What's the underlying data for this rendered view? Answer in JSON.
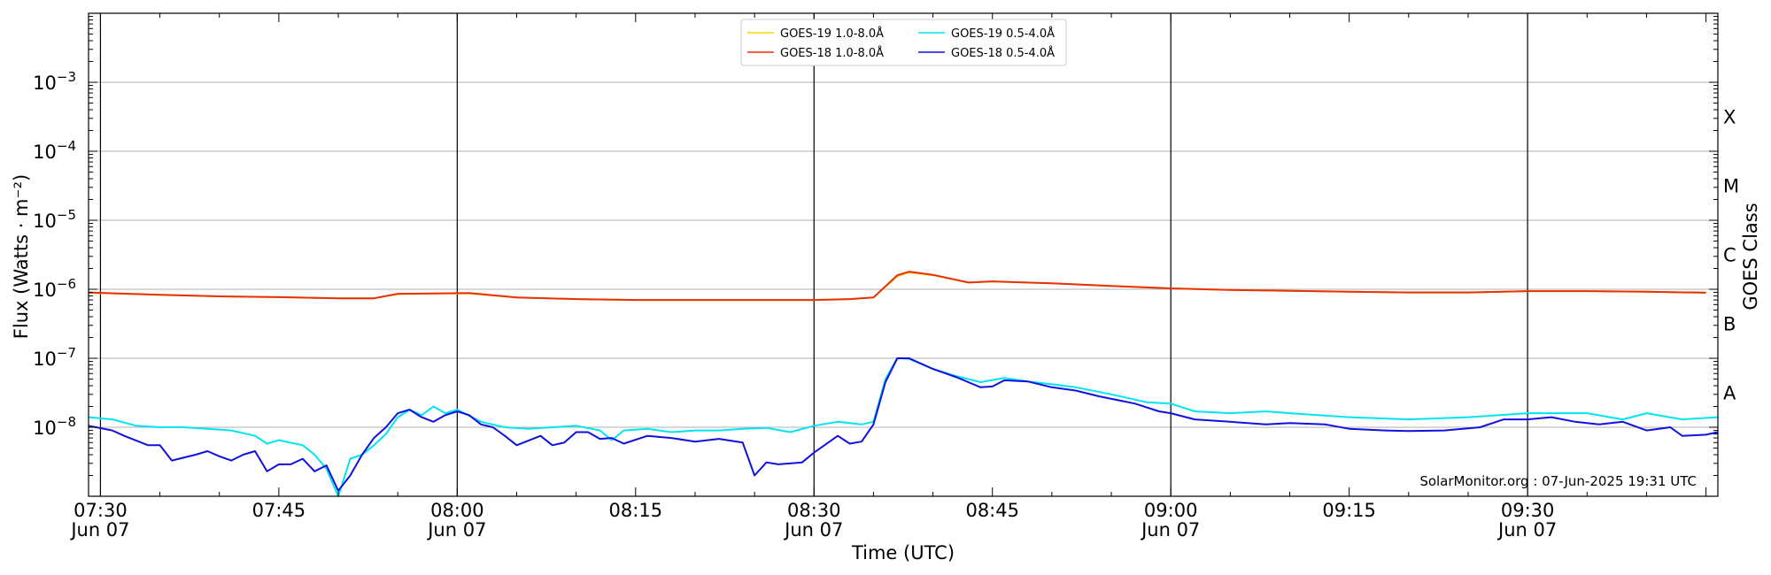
{
  "chart_data": {
    "type": "line",
    "title": "",
    "xlabel": "Time (UTC)",
    "ylabel": "Flux (Watts · m⁻²)",
    "y2label": "GOES Class",
    "credit": "SolarMonitor.org : 07-Jun-2025 19:31 UTC",
    "x_range": [
      "07:29",
      "09:46"
    ],
    "ylim": [
      1e-09,
      0.01
    ],
    "yscale": "log",
    "grid": "horizontal",
    "legend_position": "top-center",
    "x_ticks": [
      {
        "time": "07:30",
        "label": "07:30",
        "sublabel": "Jun 07",
        "major": true
      },
      {
        "time": "07:45",
        "label": "07:45",
        "sublabel": "",
        "major": false
      },
      {
        "time": "08:00",
        "label": "08:00",
        "sublabel": "Jun 07",
        "major": true
      },
      {
        "time": "08:15",
        "label": "08:15",
        "sublabel": "",
        "major": false
      },
      {
        "time": "08:30",
        "label": "08:30",
        "sublabel": "Jun 07",
        "major": true
      },
      {
        "time": "08:45",
        "label": "08:45",
        "sublabel": "",
        "major": false
      },
      {
        "time": "09:00",
        "label": "09:00",
        "sublabel": "Jun 07",
        "major": true
      },
      {
        "time": "09:15",
        "label": "09:15",
        "sublabel": "",
        "major": false
      },
      {
        "time": "09:30",
        "label": "09:30",
        "sublabel": "Jun 07",
        "major": true
      }
    ],
    "y_ticks": [
      {
        "value": 1e-08,
        "base": "10",
        "exp": "−8"
      },
      {
        "value": 1e-07,
        "base": "10",
        "exp": "−7"
      },
      {
        "value": 1e-06,
        "base": "10",
        "exp": "−6"
      },
      {
        "value": 1e-05,
        "base": "10",
        "exp": "−5"
      },
      {
        "value": 0.0001,
        "base": "10",
        "exp": "−4"
      },
      {
        "value": 0.001,
        "base": "10",
        "exp": "−3"
      }
    ],
    "goes_classes": [
      {
        "label": "A",
        "value": 3.2e-08
      },
      {
        "label": "B",
        "value": 3.2e-07
      },
      {
        "label": "C",
        "value": 3.2e-06
      },
      {
        "label": "M",
        "value": 3.2e-05
      },
      {
        "label": "X",
        "value": 0.00032
      }
    ],
    "legend": [
      {
        "name": "GOES-19 1.0-8.0Å",
        "color": "#ffd700"
      },
      {
        "name": "GOES-18 1.0-8.0Å",
        "color": "#e8300a"
      },
      {
        "name": "GOES-19 0.5-4.0Å",
        "color": "#00e5f0"
      },
      {
        "name": "GOES-18 0.5-4.0Å",
        "color": "#1010e0"
      }
    ],
    "series": [
      {
        "name": "GOES-19 1.0-8.0Å",
        "color": "#ffd700",
        "points": [
          [
            "07:29",
            8.9e-07
          ],
          [
            "07:35",
            8.3e-07
          ],
          [
            "07:40",
            7.9e-07
          ],
          [
            "07:45",
            7.7e-07
          ],
          [
            "07:50",
            7.4e-07
          ],
          [
            "07:53",
            7.4e-07
          ],
          [
            "07:55",
            8.5e-07
          ],
          [
            "07:58",
            8.7e-07
          ],
          [
            "08:01",
            8.7e-07
          ],
          [
            "08:05",
            7.6e-07
          ],
          [
            "08:10",
            7.2e-07
          ],
          [
            "08:15",
            7e-07
          ],
          [
            "08:20",
            7e-07
          ],
          [
            "08:25",
            7e-07
          ],
          [
            "08:30",
            7e-07
          ],
          [
            "08:33",
            7.2e-07
          ],
          [
            "08:35",
            7.6e-07
          ],
          [
            "08:37",
            1.55e-06
          ],
          [
            "08:38",
            1.75e-06
          ],
          [
            "08:40",
            1.6e-06
          ],
          [
            "08:43",
            1.25e-06
          ],
          [
            "08:45",
            1.3e-06
          ],
          [
            "08:50",
            1.22e-06
          ],
          [
            "08:55",
            1.12e-06
          ],
          [
            "09:00",
            1.03e-06
          ],
          [
            "09:05",
            9.8e-07
          ],
          [
            "09:10",
            9.5e-07
          ],
          [
            "09:15",
            9.2e-07
          ],
          [
            "09:20",
            9e-07
          ],
          [
            "09:25",
            9e-07
          ],
          [
            "09:30",
            9.4e-07
          ],
          [
            "09:35",
            9.4e-07
          ],
          [
            "09:40",
            9.2e-07
          ],
          [
            "09:45",
            8.9e-07
          ]
        ]
      },
      {
        "name": "GOES-18 1.0-8.0Å",
        "color": "#e8300a",
        "points": [
          [
            "07:29",
            9e-07
          ],
          [
            "07:35",
            8.3e-07
          ],
          [
            "07:40",
            7.9e-07
          ],
          [
            "07:45",
            7.7e-07
          ],
          [
            "07:50",
            7.4e-07
          ],
          [
            "07:53",
            7.4e-07
          ],
          [
            "07:55",
            8.6e-07
          ],
          [
            "07:58",
            8.7e-07
          ],
          [
            "08:01",
            8.8e-07
          ],
          [
            "08:05",
            7.6e-07
          ],
          [
            "08:10",
            7.2e-07
          ],
          [
            "08:15",
            7e-07
          ],
          [
            "08:20",
            7e-07
          ],
          [
            "08:25",
            7e-07
          ],
          [
            "08:30",
            7e-07
          ],
          [
            "08:33",
            7.2e-07
          ],
          [
            "08:35",
            7.6e-07
          ],
          [
            "08:37",
            1.6e-06
          ],
          [
            "08:38",
            1.8e-06
          ],
          [
            "08:40",
            1.62e-06
          ],
          [
            "08:43",
            1.25e-06
          ],
          [
            "08:45",
            1.3e-06
          ],
          [
            "08:50",
            1.22e-06
          ],
          [
            "08:55",
            1.12e-06
          ],
          [
            "09:00",
            1.03e-06
          ],
          [
            "09:05",
            9.8e-07
          ],
          [
            "09:10",
            9.5e-07
          ],
          [
            "09:15",
            9.2e-07
          ],
          [
            "09:20",
            9e-07
          ],
          [
            "09:25",
            9e-07
          ],
          [
            "09:30",
            9.4e-07
          ],
          [
            "09:35",
            9.4e-07
          ],
          [
            "09:40",
            9.2e-07
          ],
          [
            "09:45",
            8.9e-07
          ]
        ]
      },
      {
        "name": "GOES-19 0.5-4.0Å",
        "color": "#00e5f0",
        "points": [
          [
            "07:29",
            1.4e-08
          ],
          [
            "07:31",
            1.3e-08
          ],
          [
            "07:33",
            1.05e-08
          ],
          [
            "07:35",
            1e-08
          ],
          [
            "07:37",
            1e-08
          ],
          [
            "07:39",
            9.5e-09
          ],
          [
            "07:41",
            9e-09
          ],
          [
            "07:43",
            7.5e-09
          ],
          [
            "07:44",
            5.8e-09
          ],
          [
            "07:45",
            6.5e-09
          ],
          [
            "07:47",
            5.5e-09
          ],
          [
            "07:48",
            4e-09
          ],
          [
            "07:49",
            2.5e-09
          ],
          [
            "07:50",
            1e-09
          ],
          [
            "07:51",
            3.5e-09
          ],
          [
            "07:52",
            4e-09
          ],
          [
            "07:53",
            5.5e-09
          ],
          [
            "07:54",
            8e-09
          ],
          [
            "07:55",
            1.4e-08
          ],
          [
            "07:56",
            1.8e-08
          ],
          [
            "07:57",
            1.5e-08
          ],
          [
            "07:58",
            2e-08
          ],
          [
            "07:59",
            1.6e-08
          ],
          [
            "08:00",
            1.8e-08
          ],
          [
            "08:02",
            1.2e-08
          ],
          [
            "08:04",
            1e-08
          ],
          [
            "08:06",
            9.5e-09
          ],
          [
            "08:08",
            1e-08
          ],
          [
            "08:10",
            1.05e-08
          ],
          [
            "08:12",
            9e-09
          ],
          [
            "08:13",
            6.5e-09
          ],
          [
            "08:14",
            9e-09
          ],
          [
            "08:16",
            9.5e-09
          ],
          [
            "08:18",
            8.5e-09
          ],
          [
            "08:20",
            9e-09
          ],
          [
            "08:22",
            9e-09
          ],
          [
            "08:24",
            9.5e-09
          ],
          [
            "08:26",
            9.8e-09
          ],
          [
            "08:28",
            8.5e-09
          ],
          [
            "08:30",
            1.05e-08
          ],
          [
            "08:32",
            1.2e-08
          ],
          [
            "08:34",
            1.1e-08
          ],
          [
            "08:35",
            1.2e-08
          ],
          [
            "08:36",
            5e-08
          ],
          [
            "08:37",
            1e-07
          ],
          [
            "08:38",
            9.8e-08
          ],
          [
            "08:40",
            7e-08
          ],
          [
            "08:42",
            5.5e-08
          ],
          [
            "08:44",
            4.5e-08
          ],
          [
            "08:46",
            5.2e-08
          ],
          [
            "08:48",
            4.6e-08
          ],
          [
            "08:50",
            4.2e-08
          ],
          [
            "08:52",
            3.8e-08
          ],
          [
            "08:55",
            3e-08
          ],
          [
            "08:58",
            2.3e-08
          ],
          [
            "09:00",
            2.2e-08
          ],
          [
            "09:02",
            1.7e-08
          ],
          [
            "09:05",
            1.6e-08
          ],
          [
            "09:08",
            1.7e-08
          ],
          [
            "09:10",
            1.6e-08
          ],
          [
            "09:15",
            1.4e-08
          ],
          [
            "09:20",
            1.3e-08
          ],
          [
            "09:25",
            1.4e-08
          ],
          [
            "09:30",
            1.6e-08
          ],
          [
            "09:35",
            1.6e-08
          ],
          [
            "09:38",
            1.3e-08
          ],
          [
            "09:40",
            1.6e-08
          ],
          [
            "09:43",
            1.3e-08
          ],
          [
            "09:46",
            1.4e-08
          ]
        ]
      },
      {
        "name": "GOES-18 0.5-4.0Å",
        "color": "#1010e0",
        "points": [
          [
            "07:29",
            1.05e-08
          ],
          [
            "07:31",
            9e-09
          ],
          [
            "07:32",
            7.5e-09
          ],
          [
            "07:34",
            5.5e-09
          ],
          [
            "07:35",
            5.5e-09
          ],
          [
            "07:36",
            3.3e-09
          ],
          [
            "07:38",
            4e-09
          ],
          [
            "07:39",
            4.5e-09
          ],
          [
            "07:40",
            3.8e-09
          ],
          [
            "07:41",
            3.3e-09
          ],
          [
            "07:42",
            4e-09
          ],
          [
            "07:43",
            4.5e-09
          ],
          [
            "07:44",
            2.3e-09
          ],
          [
            "07:45",
            2.9e-09
          ],
          [
            "07:46",
            2.9e-09
          ],
          [
            "07:47",
            3.5e-09
          ],
          [
            "07:48",
            2.3e-09
          ],
          [
            "07:49",
            2.8e-09
          ],
          [
            "07:50",
            1.2e-09
          ],
          [
            "07:51",
            2e-09
          ],
          [
            "07:52",
            4e-09
          ],
          [
            "07:53",
            7e-09
          ],
          [
            "07:54",
            1e-08
          ],
          [
            "07:55",
            1.6e-08
          ],
          [
            "07:56",
            1.8e-08
          ],
          [
            "07:57",
            1.4e-08
          ],
          [
            "07:58",
            1.2e-08
          ],
          [
            "07:59",
            1.5e-08
          ],
          [
            "08:00",
            1.7e-08
          ],
          [
            "08:01",
            1.5e-08
          ],
          [
            "08:02",
            1.1e-08
          ],
          [
            "08:03",
            1e-08
          ],
          [
            "08:04",
            7.5e-09
          ],
          [
            "08:05",
            5.5e-09
          ],
          [
            "08:07",
            7.5e-09
          ],
          [
            "08:08",
            5.5e-09
          ],
          [
            "08:09",
            6e-09
          ],
          [
            "08:10",
            8.5e-09
          ],
          [
            "08:11",
            8.5e-09
          ],
          [
            "08:12",
            6.8e-09
          ],
          [
            "08:13",
            7e-09
          ],
          [
            "08:14",
            5.8e-09
          ],
          [
            "08:16",
            7.5e-09
          ],
          [
            "08:18",
            7e-09
          ],
          [
            "08:20",
            6.2e-09
          ],
          [
            "08:22",
            6.8e-09
          ],
          [
            "08:24",
            6e-09
          ],
          [
            "08:25",
            2e-09
          ],
          [
            "08:26",
            3.1e-09
          ],
          [
            "08:27",
            2.9e-09
          ],
          [
            "08:29",
            3.1e-09
          ],
          [
            "08:30",
            4.3e-09
          ],
          [
            "08:32",
            7.5e-09
          ],
          [
            "08:33",
            5.8e-09
          ],
          [
            "08:34",
            6.2e-09
          ],
          [
            "08:35",
            1.1e-08
          ],
          [
            "08:36",
            4.5e-08
          ],
          [
            "08:37",
            1e-07
          ],
          [
            "08:38",
            1e-07
          ],
          [
            "08:40",
            7e-08
          ],
          [
            "08:42",
            5.3e-08
          ],
          [
            "08:44",
            3.8e-08
          ],
          [
            "08:45",
            3.9e-08
          ],
          [
            "08:46",
            4.8e-08
          ],
          [
            "08:48",
            4.6e-08
          ],
          [
            "08:50",
            3.8e-08
          ],
          [
            "08:52",
            3.4e-08
          ],
          [
            "08:54",
            2.8e-08
          ],
          [
            "08:57",
            2.2e-08
          ],
          [
            "08:59",
            1.7e-08
          ],
          [
            "09:00",
            1.6e-08
          ],
          [
            "09:02",
            1.3e-08
          ],
          [
            "09:05",
            1.2e-08
          ],
          [
            "09:08",
            1.1e-08
          ],
          [
            "09:10",
            1.15e-08
          ],
          [
            "09:13",
            1.1e-08
          ],
          [
            "09:15",
            9.5e-09
          ],
          [
            "09:18",
            9e-09
          ],
          [
            "09:20",
            8.8e-09
          ],
          [
            "09:23",
            9e-09
          ],
          [
            "09:26",
            1e-08
          ],
          [
            "09:28",
            1.3e-08
          ],
          [
            "09:30",
            1.3e-08
          ],
          [
            "09:32",
            1.4e-08
          ],
          [
            "09:34",
            1.2e-08
          ],
          [
            "09:36",
            1.1e-08
          ],
          [
            "09:38",
            1.2e-08
          ],
          [
            "09:40",
            9e-09
          ],
          [
            "09:42",
            1e-08
          ],
          [
            "09:43",
            7.5e-09
          ],
          [
            "09:45",
            7.8e-09
          ],
          [
            "09:46",
            8.5e-09
          ]
        ]
      }
    ]
  }
}
